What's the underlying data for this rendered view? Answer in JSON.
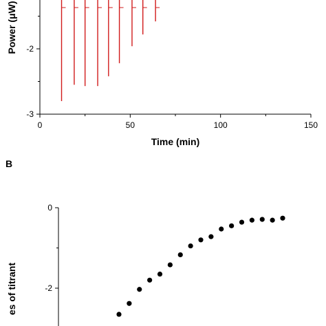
{
  "chart_data": [
    {
      "panel_label": "",
      "type": "line",
      "xlabel": "Time (min)",
      "ylabel": "Power (μW)",
      "xlim": [
        0,
        150
      ],
      "ylim": [
        -3,
        -1
      ],
      "xticks": [
        0,
        50,
        100,
        150
      ],
      "yticks": [
        -3,
        -2
      ],
      "color": "#d11a1a",
      "series": [
        {
          "injections": [
            {
              "t": 12,
              "peak": -2.8
            },
            {
              "t": 19,
              "peak": -2.55
            },
            {
              "t": 25,
              "peak": -2.57
            },
            {
              "t": 32,
              "peak": -2.57
            },
            {
              "t": 38,
              "peak": -2.42
            },
            {
              "t": 44,
              "peak": -2.22
            },
            {
              "t": 51,
              "peak": -1.96
            },
            {
              "t": 57,
              "peak": -1.78
            },
            {
              "t": 64,
              "peak": -1.58
            }
          ]
        }
      ]
    },
    {
      "panel_label": "B",
      "type": "scatter",
      "xlabel": "",
      "ylabel": "es of titrant",
      "ylim": [
        -3.6,
        0
      ],
      "yticks": [
        0,
        -2
      ],
      "color": "#000000",
      "x": [
        1,
        2,
        3,
        4,
        5,
        6,
        7,
        8,
        9,
        10,
        11,
        12,
        13,
        14,
        15,
        16,
        17
      ],
      "y": [
        -2.65,
        -2.38,
        -2.03,
        -1.8,
        -1.65,
        -1.42,
        -1.17,
        -0.95,
        -0.8,
        -0.72,
        -0.53,
        -0.45,
        -0.36,
        -0.31,
        -0.29,
        -0.31,
        -0.26
      ]
    }
  ]
}
